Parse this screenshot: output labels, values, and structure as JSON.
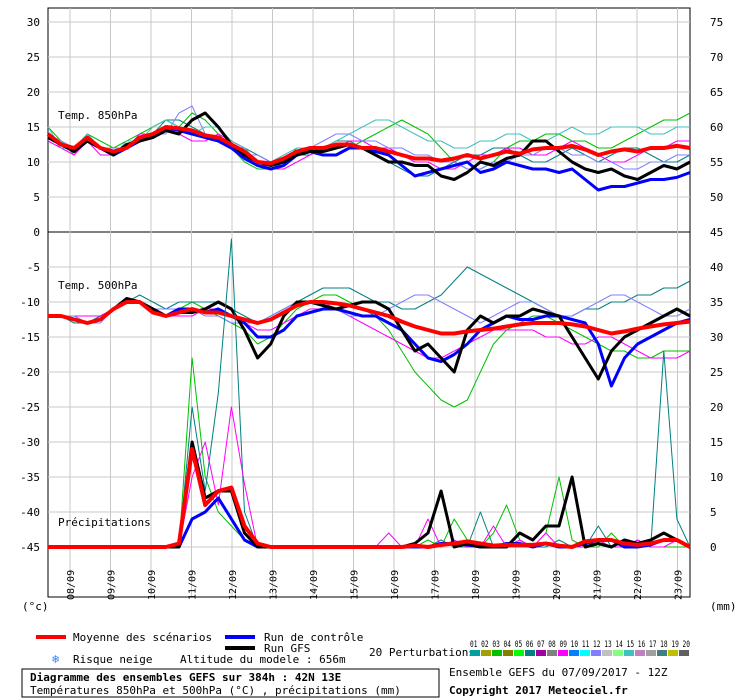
{
  "chart_data": {
    "type": "line",
    "x_labels": [
      "08/09",
      "09/09",
      "10/09",
      "11/09",
      "12/09",
      "13/09",
      "14/09",
      "15/09",
      "16/09",
      "17/09",
      "18/09",
      "19/09",
      "20/09",
      "21/09",
      "22/09",
      "23/09"
    ],
    "left_ticks": [
      "30",
      "25",
      "20",
      "15",
      "10",
      "5",
      "0",
      "-5",
      "-10",
      "-15",
      "-20",
      "-25",
      "-30",
      "-35",
      "-40",
      "-45"
    ],
    "right_ticks_top": [
      "75",
      "70",
      "65",
      "60",
      "55",
      "50"
    ],
    "right_ticks_bottom": [
      "45",
      "40",
      "35",
      "30",
      "25",
      "20",
      "15",
      "10",
      "5",
      "0"
    ],
    "left_unit": "(°c)",
    "right_unit": "(mm)",
    "panels": {
      "temp850": {
        "label": "Temp. 850hPa",
        "mean": [
          14,
          12.5,
          12,
          13.5,
          12,
          11.5,
          12,
          13.5,
          14,
          15,
          14.8,
          14.5,
          13.8,
          13.5,
          12.5,
          11.5,
          10,
          9.8,
          10.5,
          11.5,
          12,
          12,
          12.5,
          12.5,
          12,
          12,
          11.5,
          11,
          10.5,
          10.5,
          10.2,
          10.5,
          11,
          10.5,
          11,
          11.5,
          11.2,
          11.8,
          12,
          12,
          12.3,
          11.8,
          11,
          11.5,
          11.8,
          11.5,
          12,
          12,
          12.3,
          12
        ],
        "control": [
          14,
          12.5,
          11.5,
          13,
          12,
          11,
          12,
          13,
          14,
          15,
          14.5,
          14,
          13.5,
          13,
          12,
          10.5,
          9.5,
          9,
          9.5,
          11,
          11.5,
          11,
          11,
          12,
          12,
          11.5,
          11,
          9.5,
          8,
          8.5,
          9,
          9.5,
          10,
          8.5,
          9,
          10,
          9.5,
          9,
          9,
          8.5,
          9,
          7.5,
          6,
          6.5,
          6.5,
          7,
          7.5,
          7.5,
          7.8,
          8.5
        ],
        "gfs": [
          13.5,
          12.5,
          11.5,
          13,
          12,
          11,
          12.5,
          13,
          13.5,
          14.5,
          14,
          16,
          17,
          15,
          12.5,
          11,
          10,
          9.5,
          10,
          11,
          11.5,
          11.5,
          12,
          12.5,
          12,
          11,
          10,
          10,
          9.5,
          9.5,
          8,
          7.5,
          8.5,
          10,
          9.5,
          10.5,
          11,
          13,
          13,
          11.5,
          10,
          9,
          8.5,
          9,
          8,
          7.5,
          8.5,
          9.5,
          9,
          10
        ],
        "perturbations": [
          [
            15,
            13,
            11,
            14,
            13,
            12,
            13,
            14,
            15,
            16,
            15,
            17,
            16,
            14,
            12,
            10,
            9,
            9,
            10,
            12,
            12,
            11,
            11,
            12,
            13,
            14,
            15,
            16,
            15,
            14,
            12,
            10,
            9,
            9,
            10,
            12,
            13,
            13,
            14,
            14,
            13,
            13,
            12,
            12,
            13,
            14,
            15,
            16,
            16,
            17
          ],
          [
            14,
            12,
            12,
            14,
            12,
            11,
            12,
            13,
            14,
            16,
            16,
            15,
            14,
            13,
            12,
            12,
            11,
            10,
            10,
            11,
            11,
            12,
            13,
            13,
            12,
            11,
            10,
            9,
            8,
            8,
            9,
            10,
            11,
            11,
            12,
            12,
            11,
            10,
            10,
            11,
            12,
            11,
            10,
            11,
            12,
            12,
            11,
            10,
            10,
            11
          ],
          [
            13,
            12,
            11,
            13,
            11,
            11,
            12,
            14,
            14,
            15,
            14,
            13,
            13,
            14,
            13,
            12,
            10,
            9,
            9,
            10,
            11,
            12,
            12,
            13,
            13,
            12,
            12,
            11,
            10,
            10,
            9,
            9,
            10,
            11,
            11,
            12,
            12,
            11,
            11,
            12,
            13,
            12,
            11,
            10,
            10,
            11,
            12,
            12,
            13,
            13
          ],
          [
            14,
            13,
            12,
            13,
            12,
            12,
            12,
            13,
            14,
            14,
            17,
            18,
            14,
            13,
            12,
            11,
            11,
            10,
            10,
            11,
            12,
            13,
            14,
            14,
            13,
            13,
            12,
            12,
            11,
            11,
            10,
            10,
            9,
            9,
            10,
            10,
            11,
            11,
            12,
            12,
            11,
            11,
            10,
            10,
            9,
            9,
            10,
            10,
            11,
            11
          ],
          [
            15,
            12,
            12,
            14,
            12,
            11,
            13,
            13,
            15,
            16,
            15,
            14,
            15,
            15,
            13,
            12,
            10,
            10,
            11,
            12,
            12,
            12,
            13,
            14,
            15,
            16,
            16,
            15,
            14,
            13,
            13,
            12,
            12,
            13,
            13,
            14,
            14,
            13,
            13,
            14,
            15,
            14,
            14,
            15,
            15,
            15,
            14,
            14,
            15,
            15
          ]
        ],
        "mean_color": "#ff0000",
        "control_color": "#0000ff",
        "gfs_color": "#000000"
      },
      "temp500": {
        "label": "Temp. 500hPa",
        "mean": [
          -12,
          -12,
          -12.5,
          -13,
          -12.5,
          -11,
          -10,
          -10,
          -11.5,
          -12,
          -11.5,
          -11,
          -11.5,
          -11.5,
          -12,
          -12.5,
          -13,
          -12.5,
          -11.5,
          -10.5,
          -10,
          -10,
          -10.2,
          -10.5,
          -11,
          -11.5,
          -12,
          -12.8,
          -13.5,
          -14,
          -14.5,
          -14.5,
          -14.2,
          -14,
          -13.8,
          -13.5,
          -13.2,
          -13,
          -13,
          -13,
          -13.2,
          -13.5,
          -14,
          -14.5,
          -14.2,
          -13.8,
          -13.5,
          -13.2,
          -13,
          -12.8
        ],
        "control": [
          -12,
          -12,
          -12.5,
          -13,
          -12.5,
          -11,
          -10,
          -10,
          -11,
          -12,
          -11,
          -11,
          -11.5,
          -11,
          -12,
          -13,
          -15,
          -15,
          -14,
          -12,
          -11.5,
          -11,
          -11,
          -11.5,
          -12,
          -12,
          -13,
          -14,
          -16,
          -18,
          -18.5,
          -17.5,
          -16,
          -14,
          -13,
          -12,
          -12.5,
          -12.5,
          -12,
          -12,
          -12.5,
          -13,
          -16,
          -22,
          -18,
          -16,
          -15,
          -14,
          -13,
          -12.5
        ],
        "gfs": [
          -12,
          -12,
          -12.5,
          -13,
          -12.5,
          -11,
          -9.5,
          -10,
          -11,
          -12,
          -11.5,
          -11.5,
          -11,
          -10,
          -11,
          -14,
          -18,
          -16,
          -12,
          -10,
          -10,
          -10.5,
          -11,
          -10.5,
          -10,
          -10,
          -11,
          -14,
          -17,
          -16,
          -18,
          -20,
          -14,
          -12,
          -13,
          -12,
          -12,
          -11,
          -11.5,
          -12,
          -15,
          -18,
          -21,
          -17,
          -15,
          -14,
          -13,
          -12,
          -11,
          -12
        ],
        "perturbations": [
          [
            -12,
            -12,
            -12,
            -13,
            -12,
            -11,
            -10,
            -10,
            -11,
            -12,
            -11,
            -10,
            -11,
            -12,
            -13,
            -14,
            -16,
            -15,
            -13,
            -11,
            -10,
            -9,
            -9,
            -10,
            -11,
            -12,
            -14,
            -17,
            -20,
            -22,
            -24,
            -25,
            -24,
            -20,
            -16,
            -14,
            -13,
            -12,
            -12,
            -13,
            -14,
            -15,
            -16,
            -17,
            -17,
            -18,
            -18,
            -17,
            -17,
            -17
          ],
          [
            -12,
            -12,
            -13,
            -13,
            -12,
            -11,
            -10,
            -9,
            -10,
            -11,
            -10,
            -10,
            -10,
            -10,
            -11,
            -12,
            -13,
            -12,
            -11,
            -10,
            -9,
            -8,
            -8,
            -8,
            -9,
            -10,
            -10,
            -11,
            -11,
            -10,
            -9,
            -7,
            -5,
            -6,
            -7,
            -8,
            -9,
            -10,
            -11,
            -12,
            -12,
            -11,
            -11,
            -10,
            -10,
            -9,
            -9,
            -8,
            -8,
            -7
          ],
          [
            -12,
            -12,
            -12,
            -12,
            -12,
            -11,
            -10,
            -10,
            -11,
            -12,
            -12,
            -12,
            -11,
            -11,
            -12,
            -13,
            -14,
            -14,
            -13,
            -12,
            -11,
            -11,
            -11,
            -12,
            -13,
            -14,
            -15,
            -16,
            -17,
            -18,
            -18,
            -17,
            -16,
            -15,
            -14,
            -14,
            -14,
            -14,
            -15,
            -15,
            -16,
            -16,
            -15,
            -15,
            -16,
            -17,
            -18,
            -18,
            -18,
            -17
          ],
          [
            -12,
            -12,
            -12,
            -13,
            -13,
            -11,
            -10,
            -10,
            -11,
            -11,
            -11,
            -11,
            -12,
            -12,
            -13,
            -13,
            -13,
            -12,
            -11,
            -10,
            -10,
            -10,
            -11,
            -12,
            -12,
            -12,
            -11,
            -10,
            -9,
            -9,
            -10,
            -11,
            -12,
            -13,
            -12,
            -11,
            -10,
            -10,
            -11,
            -12,
            -12,
            -11,
            -10,
            -9,
            -9,
            -10,
            -11,
            -12,
            -12,
            -11
          ]
        ],
        "mean_color": "#ff0000",
        "control_color": "#0000ff",
        "gfs_color": "#000000"
      },
      "precip": {
        "label": "Précipitations",
        "mean": [
          0,
          0,
          0,
          0,
          0,
          0,
          0,
          0,
          0,
          0,
          0.5,
          14,
          6,
          8,
          8.5,
          3,
          0.5,
          0,
          0,
          0,
          0,
          0,
          0,
          0,
          0,
          0,
          0,
          0,
          0.2,
          0,
          0.3,
          0.5,
          0.8,
          0.5,
          0.2,
          0.3,
          0.3,
          0.3,
          0.5,
          0.2,
          0,
          0.8,
          1,
          1,
          0.5,
          0.3,
          0.5,
          1,
          1,
          0
        ],
        "control": [
          0,
          0,
          0,
          0,
          0,
          0,
          0,
          0,
          0,
          0,
          0,
          4,
          5,
          7,
          4,
          1,
          0,
          0,
          0,
          0,
          0,
          0,
          0,
          0,
          0,
          0,
          0,
          0,
          0,
          0,
          0.5,
          0.5,
          0.3,
          0,
          0,
          0.5,
          0.5,
          0,
          0.5,
          0,
          0,
          0.5,
          1,
          1,
          0,
          0,
          0.3,
          1,
          1,
          0
        ],
        "gfs": [
          0,
          0,
          0,
          0,
          0,
          0,
          0,
          0,
          0,
          0,
          0,
          15,
          7,
          8,
          8,
          2,
          0,
          0,
          0,
          0,
          0,
          0,
          0,
          0,
          0,
          0,
          0,
          0,
          0.5,
          2,
          8,
          0,
          0.5,
          0,
          0,
          0,
          2,
          1,
          3,
          3,
          10,
          0,
          0.5,
          0,
          1,
          0.5,
          1,
          2,
          1,
          0
        ],
        "perturbations": [
          [
            0,
            0,
            0,
            0,
            0,
            0,
            0,
            0,
            0,
            0,
            0,
            27,
            10,
            5,
            3,
            1,
            0,
            0,
            0,
            0,
            0,
            0,
            0,
            0,
            0,
            0,
            0,
            0,
            0,
            1,
            0,
            4,
            1,
            0,
            2,
            6,
            1,
            0,
            2,
            10,
            1,
            0,
            0,
            2,
            0,
            1,
            0,
            0,
            0,
            0
          ],
          [
            0,
            0,
            0,
            0,
            0,
            0,
            0,
            0,
            0,
            0,
            0,
            20,
            8,
            22,
            44,
            5,
            0,
            0,
            0,
            0,
            0,
            0,
            0,
            0,
            0,
            0,
            0,
            0,
            0,
            0,
            1,
            0,
            0,
            5,
            0,
            0,
            0,
            0,
            0,
            1,
            0,
            0,
            3,
            0,
            0,
            1,
            0,
            28,
            4,
            0
          ],
          [
            0,
            0,
            0,
            0,
            0,
            0,
            0,
            0,
            0,
            0,
            0,
            10,
            15,
            6,
            20,
            9,
            0,
            0,
            0,
            0,
            0,
            0,
            0,
            0,
            0,
            0,
            2,
            0,
            0,
            4,
            0,
            1,
            0,
            0,
            3,
            0,
            1,
            0,
            2,
            0,
            0,
            0,
            1,
            0,
            0,
            1,
            0,
            0,
            1,
            0
          ]
        ],
        "mean_color": "#ff0000",
        "control_color": "#0000ff",
        "gfs_color": "#000000"
      }
    }
  },
  "legend": {
    "mean_label": "Moyenne des scénarios",
    "control_label": "Run de contrôle",
    "gfs_label": "Run GFS",
    "perturb_label": "20 Perturbations",
    "perturb_numbers": "01 02 03 04 05 06 07 08 09 10 11 12 13 14 15 16 17 18 19 20",
    "perturb_colors": [
      "#00a0a0",
      "#a0a000",
      "#00c000",
      "#808000",
      "#00ff00",
      "#008080",
      "#a000a0",
      "#808080",
      "#ff00ff",
      "#0080ff",
      "#00ffff",
      "#8080ff",
      "#c0c0c0",
      "#80ff80",
      "#40c0c0",
      "#c080c0",
      "#a0a0a0",
      "#408080",
      "#c0c000",
      "#606060"
    ],
    "snow_label": "Risque neige",
    "altitude_label": "Altitude du modele : 656m"
  },
  "footer": {
    "title": "Diagramme des ensembles GEFS sur 384h : 42N 13E",
    "subtitle": "Températures 850hPa et 500hPa (°C) , précipitations (mm)",
    "run_info": "Ensemble GEFS du 07/09/2017 - 12Z",
    "copyright": "Copyright 2017 Meteociel.fr"
  }
}
